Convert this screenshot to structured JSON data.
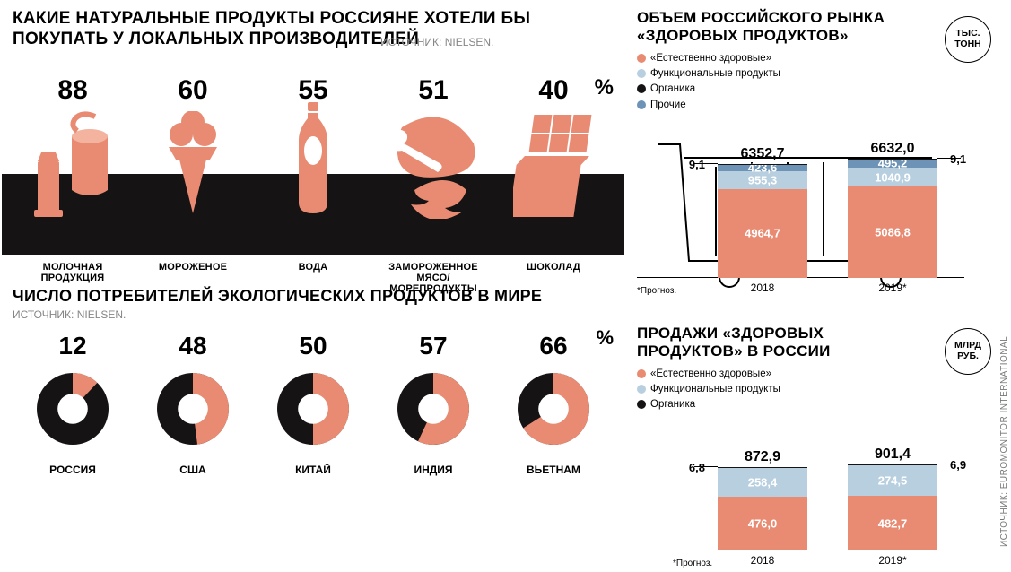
{
  "colors": {
    "salmon": "#e88b72",
    "dark": "#151313",
    "lightblue": "#b8cfe0",
    "blue": "#6d93b6",
    "grey": "#868686",
    "bg": "#ffffff",
    "text": "#000000"
  },
  "topLeft": {
    "title": "КАКИЕ НАТУРАЛЬНЫЕ ПРОДУКТЫ РОССИЯНЕ ХОТЕЛИ БЫ\nПОКУПАТЬ У ЛОКАЛЬНЫХ ПРОИЗВОДИТЕЛЕЙ",
    "source": "ИСТОЧНИК: NIELSEN.",
    "unit": "%",
    "type": "pictogram-bar",
    "categories": [
      "МОЛОЧНАЯ\nПРОДУКЦИЯ",
      "МОРОЖЕНОЕ",
      "ВОДА",
      "ЗАМОРОЖЕННОЕ МЯСО/\nМОРЕПРОДУКТЫ",
      "ШОКОЛАД"
    ],
    "values": [
      88,
      60,
      55,
      51,
      40
    ],
    "icon_names": [
      "dairy-icon",
      "icecream-icon",
      "bottle-icon",
      "meat-fish-icon",
      "chocolate-icon"
    ],
    "icon_color": "#e88b72",
    "band_color": "#151313",
    "value_fontsize": 30,
    "label_fontsize": 11
  },
  "bottomLeft": {
    "title": "ЧИСЛО ПОТРЕБИТЕЛЕЙ ЭКОЛОГИЧЕСКИХ ПРОДУКТОВ В МИРЕ",
    "source": "ИСТОЧНИК: NIELSEN.",
    "unit": "%",
    "type": "donut-row",
    "categories": [
      "РОССИЯ",
      "США",
      "КИТАЙ",
      "ИНДИЯ",
      "ВЬЕТНАМ"
    ],
    "values": [
      12,
      48,
      50,
      57,
      66
    ],
    "value_color": "#e88b72",
    "rest_color": "#151313",
    "hole_ratio": 0.42,
    "value_fontsize": 28,
    "label_fontsize": 12
  },
  "topRight": {
    "title": "ОБЪЕМ РОССИЙСКОГО РЫНКА\n«ЗДОРОВЫХ ПРОДУКТОВ»",
    "unit": "ТЫС.\nТОНН",
    "type": "stacked-bar",
    "legend": [
      {
        "label": "«Естественно здоровые»",
        "color": "#e88b72"
      },
      {
        "label": "Функциональные продукты",
        "color": "#b8cfe0"
      },
      {
        "label": "Органика",
        "color": "#151313"
      },
      {
        "label": "Прочие",
        "color": "#6d93b6"
      }
    ],
    "ymax": 7000,
    "bars": [
      {
        "xlabel": "2018",
        "total": "6352,7",
        "segments": [
          {
            "color": "#e88b72",
            "value": 4964.7,
            "label": "4964,7",
            "pos": "in"
          },
          {
            "color": "#b8cfe0",
            "value": 955.3,
            "label": "955,3",
            "pos": "in"
          },
          {
            "color": "#6d93b6",
            "value": 423.6,
            "label": "423,6",
            "pos": "in"
          },
          {
            "color": "#151313",
            "value": 9.1,
            "label": "9,1",
            "pos": "out-l"
          }
        ]
      },
      {
        "xlabel": "2019*",
        "total": "6632,0",
        "segments": [
          {
            "color": "#e88b72",
            "value": 5086.8,
            "label": "5086,8",
            "pos": "in"
          },
          {
            "color": "#b8cfe0",
            "value": 1040.9,
            "label": "1040,9",
            "pos": "in"
          },
          {
            "color": "#6d93b6",
            "value": 495.2,
            "label": "495,2",
            "pos": "in"
          },
          {
            "color": "#151313",
            "value": 9.1,
            "label": "9,1",
            "pos": "out-r"
          }
        ]
      }
    ],
    "footnote": "*Прогноз."
  },
  "bottomRight": {
    "title": "ПРОДАЖИ «ЗДОРОВЫХ\nПРОДУКТОВ» В РОССИИ",
    "unit": "МЛРД\nРУБ.",
    "type": "stacked-bar",
    "legend": [
      {
        "label": "«Естественно здоровые»",
        "color": "#e88b72"
      },
      {
        "label": "Функциональные продукты",
        "color": "#b8cfe0"
      },
      {
        "label": "Органика",
        "color": "#151313"
      }
    ],
    "ymax": 950,
    "bars": [
      {
        "xlabel": "2018",
        "total": "872,9",
        "segments": [
          {
            "color": "#e88b72",
            "value": 476.0,
            "label": "476,0",
            "pos": "in"
          },
          {
            "color": "#b8cfe0",
            "value": 258.4,
            "label": "258,4",
            "pos": "in"
          },
          {
            "color": "#151313",
            "value": 6.8,
            "label": "6,8",
            "pos": "out-l"
          }
        ]
      },
      {
        "xlabel": "2019*",
        "total": "901,4",
        "segments": [
          {
            "color": "#e88b72",
            "value": 482.7,
            "label": "482,7",
            "pos": "in"
          },
          {
            "color": "#b8cfe0",
            "value": 274.5,
            "label": "274,5",
            "pos": "in"
          },
          {
            "color": "#151313",
            "value": 6.9,
            "label": "6,9",
            "pos": "out-r"
          }
        ]
      }
    ],
    "footnote": "*Прогноз."
  },
  "source_vertical": "ИСТОЧНИК: EUROMONITOR INTERNATIONAL"
}
